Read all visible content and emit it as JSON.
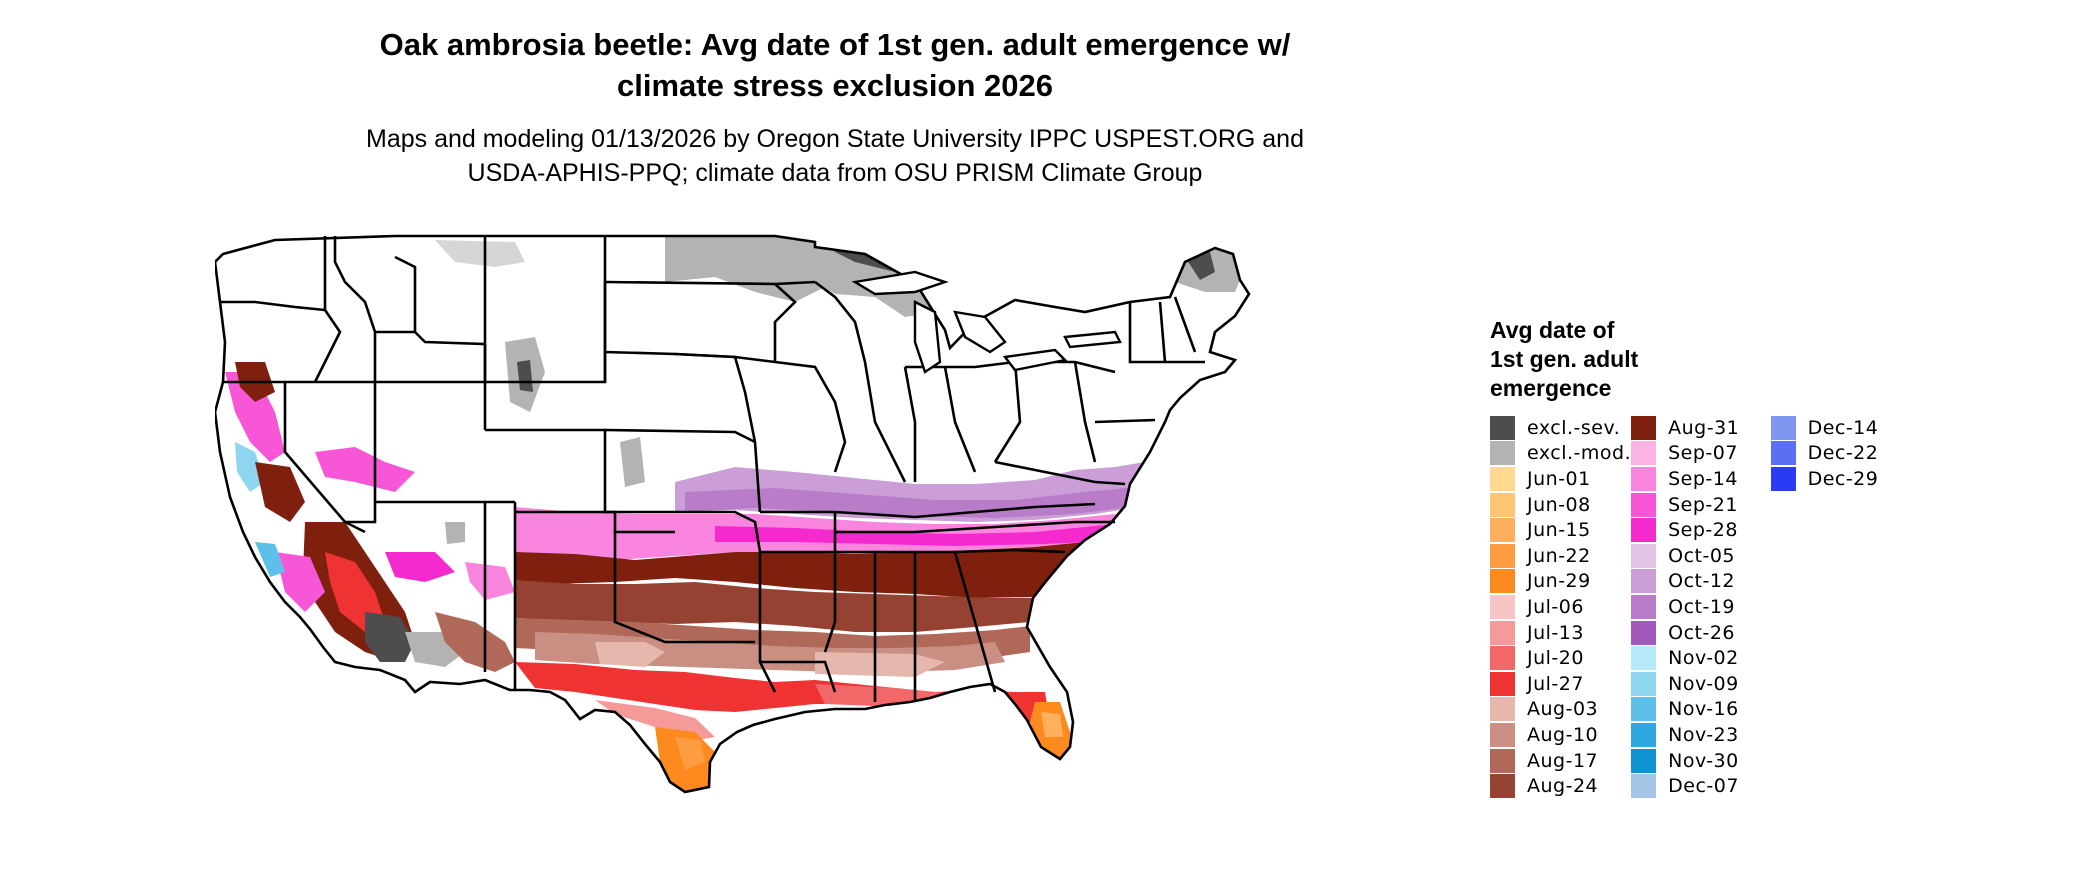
{
  "header": {
    "title_line1": "Oak ambrosia beetle: Avg date of 1st gen. adult emergence w/",
    "title_line2": "climate stress exclusion 2026",
    "subtitle_line1": "Maps and modeling 01/13/2026 by Oregon State University IPPC USPEST.ORG and",
    "subtitle_line2": "USDA-APHIS-PPQ; climate data from OSU PRISM Climate Group"
  },
  "legend": {
    "title_line1": "Avg date of",
    "title_line2": "1st gen. adult",
    "title_line3": "emergence",
    "columns": [
      [
        {
          "label": "excl.-sev.",
          "color": "#4d4d4d"
        },
        {
          "label": "excl.-mod.",
          "color": "#b3b3b3"
        },
        {
          "label": "Jun-01",
          "color": "#fed98e"
        },
        {
          "label": "Jun-08",
          "color": "#fec574"
        },
        {
          "label": "Jun-15",
          "color": "#feb05c"
        },
        {
          "label": "Jun-22",
          "color": "#fe9c42"
        },
        {
          "label": "Jun-29",
          "color": "#fd8a1f"
        },
        {
          "label": "Jul-06",
          "color": "#f8c5c5"
        },
        {
          "label": "Jul-13",
          "color": "#f59999"
        },
        {
          "label": "Jul-20",
          "color": "#f26868"
        },
        {
          "label": "Jul-27",
          "color": "#ef3333"
        },
        {
          "label": "Aug-03",
          "color": "#e6b8ad"
        },
        {
          "label": "Aug-10",
          "color": "#c98f82"
        },
        {
          "label": "Aug-17",
          "color": "#b06858"
        },
        {
          "label": "Aug-24",
          "color": "#964233"
        }
      ],
      [
        {
          "label": "Aug-31",
          "color": "#7f200f"
        },
        {
          "label": "Sep-07",
          "color": "#fbb3e6"
        },
        {
          "label": "Sep-14",
          "color": "#f985de"
        },
        {
          "label": "Sep-21",
          "color": "#f757d6"
        },
        {
          "label": "Sep-28",
          "color": "#f52ace"
        },
        {
          "label": "Oct-05",
          "color": "#e1c4e8"
        },
        {
          "label": "Oct-12",
          "color": "#cc9ed8"
        },
        {
          "label": "Oct-19",
          "color": "#b87cc9"
        },
        {
          "label": "Oct-26",
          "color": "#a358bb"
        },
        {
          "label": "Nov-02",
          "color": "#b8e9f8"
        },
        {
          "label": "Nov-09",
          "color": "#8ed5f0"
        },
        {
          "label": "Nov-16",
          "color": "#5ec0e8"
        },
        {
          "label": "Nov-23",
          "color": "#2ea8df"
        },
        {
          "label": "Nov-30",
          "color": "#0f92d2"
        },
        {
          "label": "Dec-07",
          "color": "#a4c4e8"
        }
      ],
      [
        {
          "label": "Dec-14",
          "color": "#7e96ee"
        },
        {
          "label": "Dec-22",
          "color": "#5a6ff2"
        },
        {
          "label": "Dec-29",
          "color": "#2b3af5"
        }
      ]
    ]
  }
}
